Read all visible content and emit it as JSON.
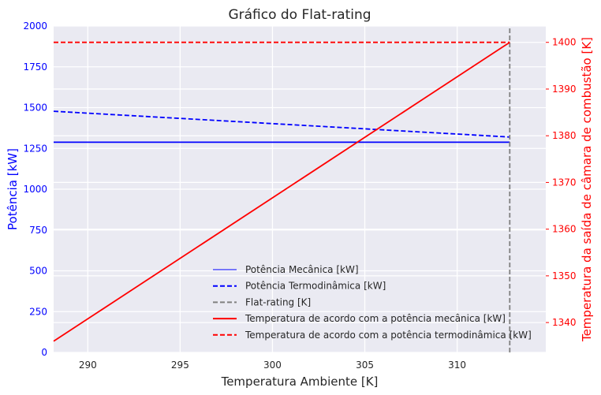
{
  "chart_data": {
    "type": "line",
    "title": "Gráfico do Flat-rating",
    "xlabel": "Temperatura Ambiente [K]",
    "ylabel_left": "Potência [kW]",
    "ylabel_right": "Temperatura da saída de câmara de combustão [K]",
    "xlim": [
      288.15,
      314.8
    ],
    "ylim_left": [
      0,
      2000
    ],
    "ylim_right": [
      1333.6,
      1403.5
    ],
    "x_ticks": [
      "290",
      "295",
      "300",
      "305",
      "310"
    ],
    "x_tick_values": [
      290,
      295,
      300,
      305,
      310
    ],
    "y_left_ticks": [
      "0",
      "250",
      "500",
      "750",
      "1000",
      "1250",
      "1500",
      "1750",
      "2000"
    ],
    "y_left_tick_values": [
      0,
      250,
      500,
      750,
      1000,
      1250,
      1500,
      1750,
      2000
    ],
    "y_right_ticks": [
      "1340",
      "1350",
      "1360",
      "1370",
      "1380",
      "1390",
      "1400"
    ],
    "y_right_tick_values": [
      1340,
      1350,
      1360,
      1370,
      1380,
      1390,
      1400
    ],
    "grid": true,
    "legend_position": "lower-center",
    "series": [
      {
        "name": "Potência Mecânica [kW]",
        "axis": "left",
        "color": "#0000ff",
        "style": "solid",
        "x": [
          288.15,
          312.85
        ],
        "y": [
          1288,
          1288
        ]
      },
      {
        "name": "Potência Termodinâmica [kW]",
        "axis": "left",
        "color": "#0000ff",
        "style": "dashed",
        "x": [
          288.15,
          312.85
        ],
        "y": [
          1478,
          1320
        ]
      },
      {
        "name": "Flat-rating [K]",
        "axis": "left",
        "color": "#808080",
        "style": "dashed",
        "x": [
          312.85,
          312.85
        ],
        "y": [
          0,
          2000
        ]
      },
      {
        "name": "Temperatura de acordo com a potência mecânica [kW]",
        "axis": "right",
        "color": "#ff0000",
        "style": "solid",
        "x": [
          288.15,
          312.85
        ],
        "y": [
          1336,
          1400
        ]
      },
      {
        "name": "Temperatura de acordo com a potência termodinâmica [kW]",
        "axis": "right",
        "color": "#ff0000",
        "style": "dashed",
        "x": [
          288.15,
          312.85
        ],
        "y": [
          1400,
          1400
        ]
      }
    ],
    "colors": {
      "left_axis": "#0000ff",
      "right_axis": "#ff0000",
      "plot_bg": "#eaeaf2",
      "grid": "#ffffff"
    }
  }
}
